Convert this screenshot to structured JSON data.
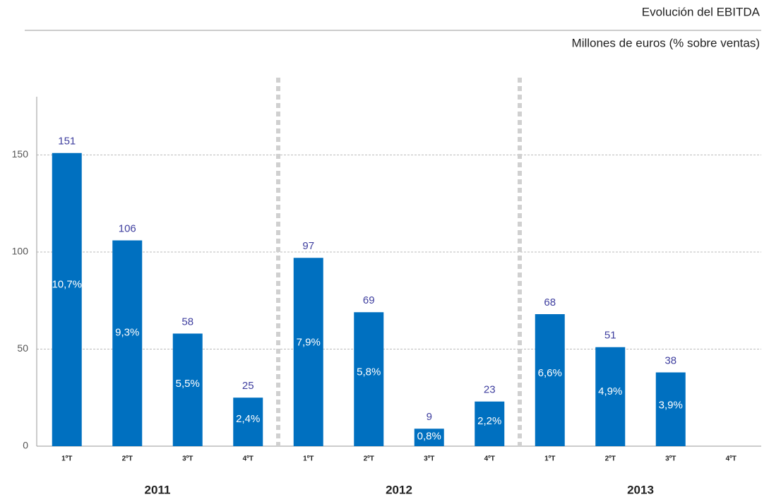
{
  "chart_data": {
    "type": "bar",
    "title": "Evolución del EBITDA",
    "subtitle": "Millones de euros (% sobre ventas)",
    "categories": [
      "1ºT",
      "2ºT",
      "3ºT",
      "4ºT",
      "1ºT",
      "2ºT",
      "3ºT",
      "4ºT",
      "1ºT",
      "2ºT",
      "3ºT",
      "4ºT"
    ],
    "groups": [
      "2011",
      "2012",
      "2013"
    ],
    "values": [
      151,
      106,
      58,
      25,
      97,
      69,
      9,
      23,
      68,
      51,
      38,
      null
    ],
    "margin_labels": [
      "10,7%",
      "9,3%",
      "5,5%",
      "2,4%",
      "7,9%",
      "5,8%",
      "0,8%",
      "2,2%",
      "6,6%",
      "4,9%",
      "3,9%",
      null
    ],
    "color": "#0070c0",
    "ylim": [
      0,
      180
    ],
    "yticks": [
      0,
      50,
      100,
      150
    ],
    "grid": true
  }
}
